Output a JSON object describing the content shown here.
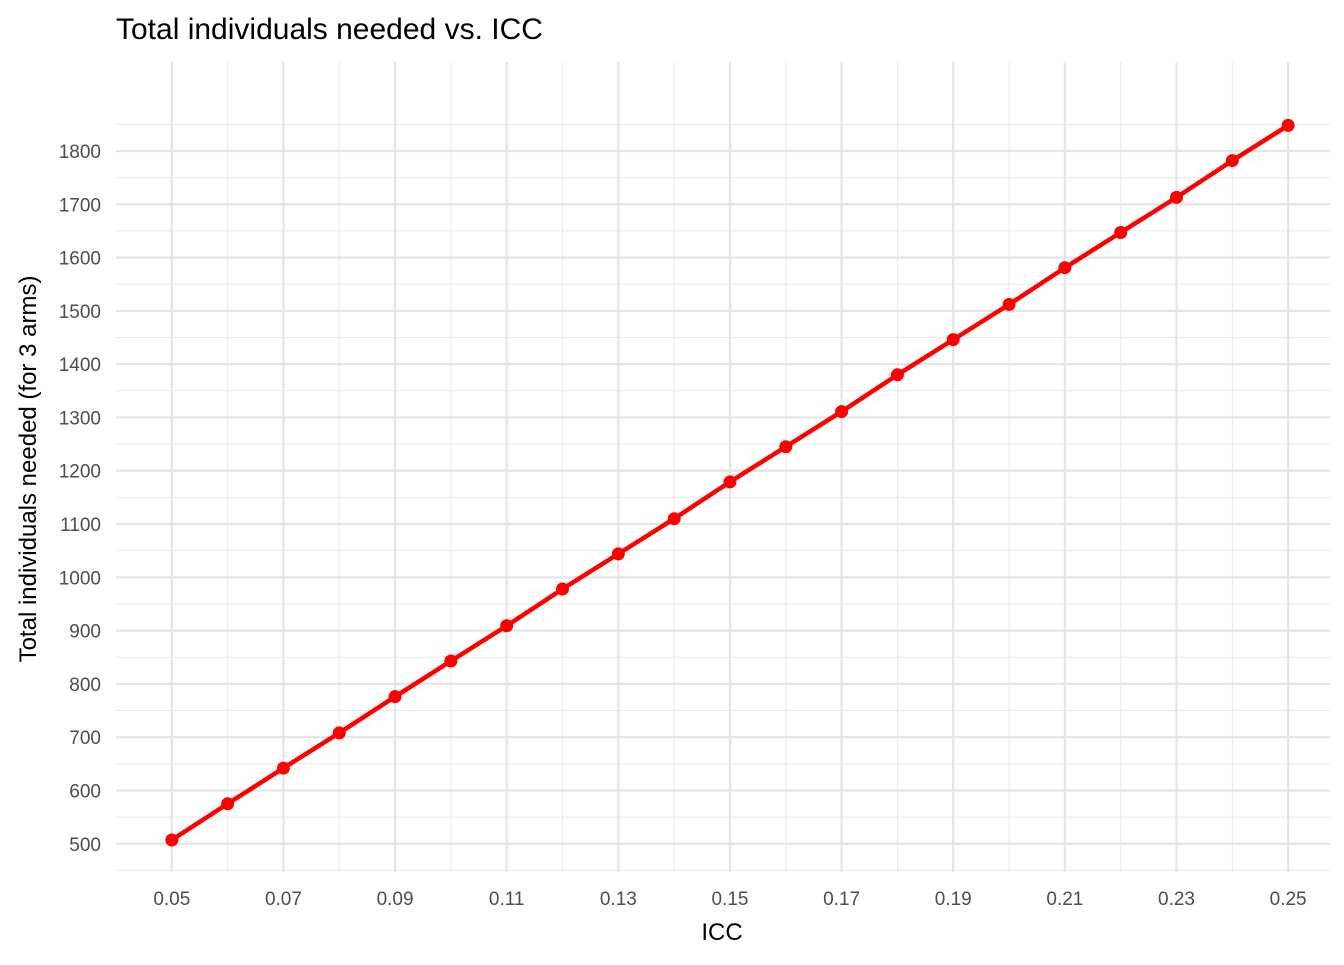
{
  "chart_data": {
    "type": "line",
    "title": "Total individuals needed vs. ICC",
    "xlabel": "ICC",
    "ylabel": "Total individuals needed (for 3 arms)",
    "x": [
      0.05,
      0.06,
      0.07,
      0.08,
      0.09,
      0.1,
      0.11,
      0.12,
      0.13,
      0.14,
      0.15,
      0.16,
      0.17,
      0.18,
      0.19,
      0.2,
      0.21,
      0.22,
      0.23,
      0.24,
      0.25
    ],
    "series": [
      {
        "values": [
          507,
          575,
          642,
          708,
          776,
          843,
          909,
          978,
          1044,
          1110,
          1179,
          1245,
          1311,
          1380,
          1446,
          1512,
          1581,
          1647,
          1713,
          1782,
          1848
        ],
        "color": "#ff0000",
        "markers": true
      }
    ],
    "xlim": [
      0.04,
      0.2575
    ],
    "ylim": [
      447,
      1967
    ],
    "x_ticks": [
      "0.05",
      "0.07",
      "0.09",
      "0.11",
      "0.13",
      "0.15",
      "0.17",
      "0.19",
      "0.21",
      "0.23",
      "0.25"
    ],
    "y_ticks": [
      "500",
      "600",
      "700",
      "800",
      "900",
      "1000",
      "1100",
      "1200",
      "1300",
      "1400",
      "1500",
      "1600",
      "1700",
      "1800"
    ],
    "grid": true,
    "legend": "none"
  }
}
